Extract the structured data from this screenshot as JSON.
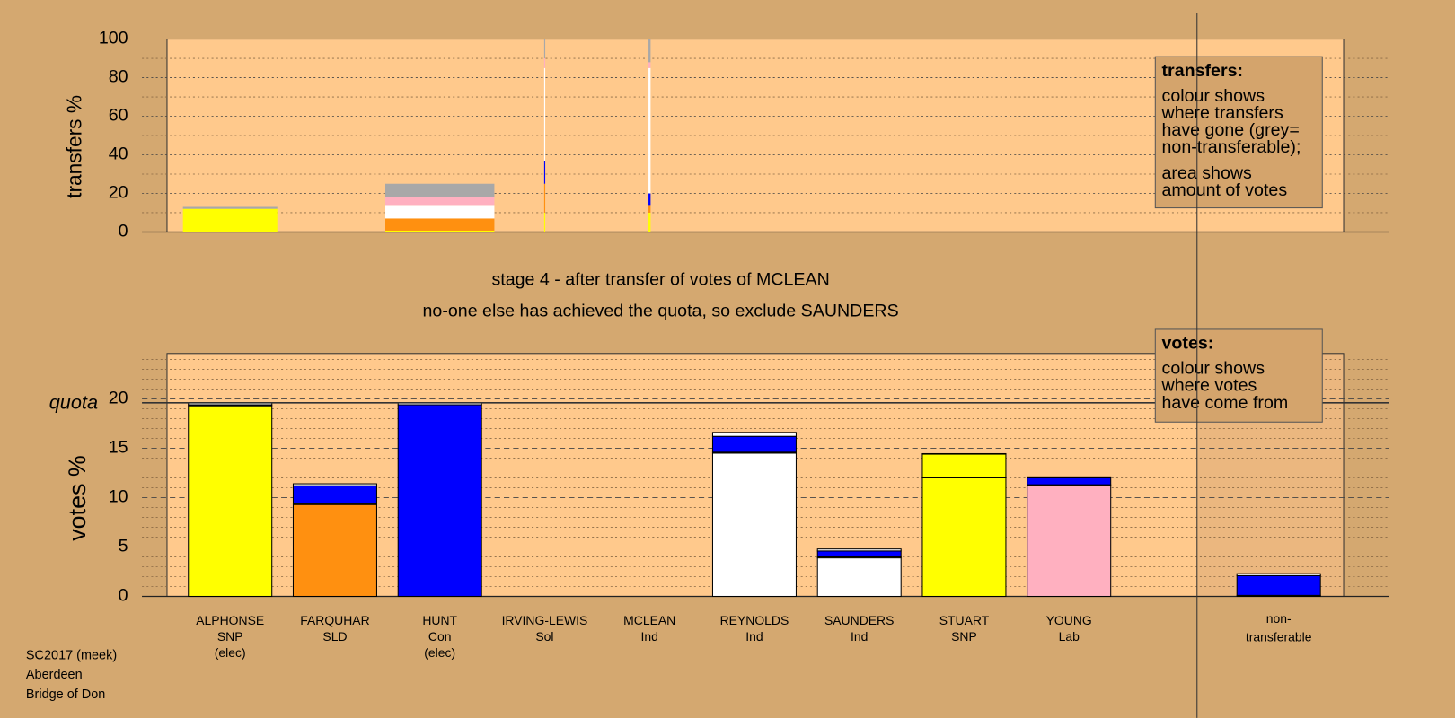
{
  "stage": "stage 4 - after transfer of votes of MCLEAN",
  "message": "no-one else has achieved the quota, so exclude SAUNDERS",
  "footer": [
    "SC2017 (meek)",
    "Aberdeen",
    "Bridge of Don"
  ],
  "chart_data": [
    {
      "type": "transfers",
      "ylabel": "transfers %",
      "ylim": [
        0,
        100
      ],
      "yticks": [
        0,
        20,
        40,
        60,
        80,
        100
      ],
      "minor_yticks": [
        10,
        30,
        50,
        70,
        90
      ],
      "grid": true,
      "widths": [
        0.9,
        0,
        1.04,
        0.01,
        0.02,
        0,
        0,
        0,
        0,
        null,
        0
      ],
      "series": [
        {
          "color": "#ffff00",
          "values": [
            12,
            0,
            0.7,
            10,
            10,
            0,
            0,
            0,
            0,
            null,
            0
          ]
        },
        {
          "color": "#ff9010",
          "values": [
            0,
            0,
            6.3,
            15,
            4,
            0,
            0,
            0,
            0,
            null,
            0
          ]
        },
        {
          "color": "#0000ff",
          "values": [
            0,
            0,
            0,
            12,
            6,
            0,
            0,
            0,
            0,
            null,
            0
          ]
        },
        {
          "color": "#ffffff",
          "values": [
            0,
            0,
            7,
            48,
            65,
            0,
            0,
            0,
            0,
            null,
            0
          ]
        },
        {
          "color": "#ffb0c0",
          "values": [
            0,
            0,
            4,
            5,
            3,
            0,
            0,
            0,
            0,
            null,
            0
          ]
        },
        {
          "color": "#a8a8a8",
          "values": [
            1,
            0,
            7,
            10,
            12,
            0,
            0,
            0,
            0,
            null,
            0
          ]
        }
      ],
      "note": {
        "title": "transfers:",
        "lines": [
          "colour shows",
          "where transfers",
          "have gone (grey=",
          "non-transferable);",
          "area shows",
          "amount of votes"
        ]
      }
    },
    {
      "type": "votes",
      "ylabel": "votes %",
      "ylim": [
        0,
        24.6
      ],
      "yticks": [
        0,
        5,
        10,
        15,
        20
      ],
      "minor_yticks": [
        1,
        2,
        3,
        4,
        6,
        7,
        8,
        9,
        11,
        12,
        13,
        14,
        16,
        17,
        18,
        19,
        21,
        22,
        23,
        24
      ],
      "grid": true,
      "quota": 19.6,
      "quota_label": "quota",
      "categories": [
        [
          "ALPHONSE",
          "SNP",
          "(elec)"
        ],
        [
          "FARQUHAR",
          "SLD"
        ],
        [
          "HUNT",
          "Con",
          "(elec)"
        ],
        [
          "IRVING-LEWIS",
          "Sol"
        ],
        [
          "MCLEAN",
          "Ind"
        ],
        [
          "REYNOLDS",
          "Ind"
        ],
        [
          "SAUNDERS",
          "Ind"
        ],
        [
          "STUART",
          "SNP"
        ],
        [
          "YOUNG",
          "Lab"
        ],
        null,
        [
          "non-",
          "transferable"
        ]
      ],
      "series": [
        {
          "colors": [
            "#ffff00",
            "#ff9010",
            "#0000ff",
            null,
            null,
            "#ffffff",
            "#ffffff",
            "#ffff00",
            "#ffb0c0",
            null,
            null
          ],
          "values": [
            19.3,
            9.3,
            19.4,
            0,
            0,
            14.5,
            3.9,
            12.0,
            11.2,
            null,
            0
          ]
        },
        {
          "color": "#ffff00",
          "values": [
            0,
            0.1,
            0,
            0,
            0,
            0.1,
            0.1,
            2.4,
            0.1,
            null,
            0.1
          ]
        },
        {
          "color": "#0000ff",
          "values": [
            0.1,
            1.8,
            0,
            0,
            0,
            1.6,
            0.6,
            0.05,
            0.7,
            null,
            2.0
          ]
        },
        {
          "color": "#ffffff",
          "values": [
            0.2,
            0.2,
            0.2,
            0,
            0,
            0.4,
            0.2,
            0,
            0.1,
            null,
            0.2
          ]
        }
      ],
      "note": {
        "title": "votes:",
        "lines": [
          "colour shows",
          "where votes",
          "have come from"
        ]
      }
    }
  ]
}
